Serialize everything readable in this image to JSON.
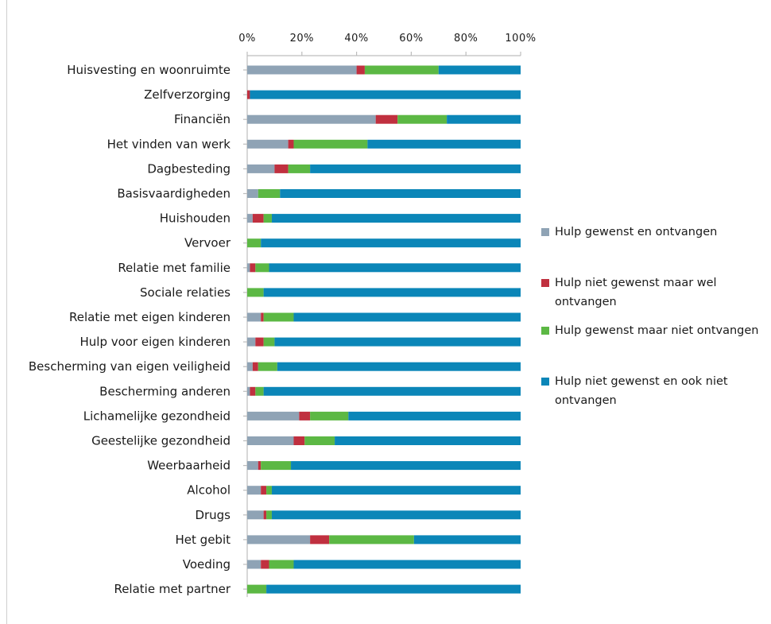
{
  "chart_data": {
    "type": "bar",
    "orientation": "horizontal",
    "stacked": true,
    "x_ticks": [
      "0%",
      "20%",
      "40%",
      "60%",
      "80%",
      "100%"
    ],
    "xlim": [
      0,
      100
    ],
    "axis_position": "top",
    "categories": [
      "Huisvesting en woonruimte",
      "Zelfverzorging",
      "Financiën",
      "Het vinden van werk",
      "Dagbesteding",
      "Basisvaardigheden",
      "Huishouden",
      "Vervoer",
      "Relatie met familie",
      "Sociale relaties",
      "Relatie met eigen kinderen",
      "Hulp voor eigen kinderen",
      "Bescherming van eigen veiligheid",
      "Bescherming anderen",
      "Lichamelijke gezondheid",
      "Geestelijke gezondheid",
      "Weerbaarheid",
      "Alcohol",
      "Drugs",
      "Het gebit",
      "Voeding",
      "Relatie met partner"
    ],
    "series": [
      {
        "name": "Hulp gewenst en ontvangen",
        "color": "#8fa3b5",
        "values": [
          40,
          0,
          47,
          15,
          10,
          4,
          2,
          0,
          1,
          0,
          5,
          3,
          2,
          1,
          19,
          17,
          4,
          5,
          6,
          23,
          5,
          0
        ]
      },
      {
        "name": "Hulp niet gewenst maar wel ontvangen",
        "color": "#c0303f",
        "values": [
          3,
          1,
          8,
          2,
          5,
          0,
          4,
          0,
          2,
          0,
          1,
          3,
          2,
          2,
          4,
          4,
          1,
          2,
          1,
          7,
          3,
          0
        ]
      },
      {
        "name": "Hulp gewenst maar niet ontvangen",
        "color": "#5cb844",
        "values": [
          27,
          0,
          18,
          27,
          8,
          8,
          3,
          5,
          5,
          6,
          11,
          4,
          7,
          3,
          14,
          11,
          11,
          2,
          2,
          31,
          9,
          7
        ]
      },
      {
        "name": "Hulp niet gewenst en ook niet ontvangen",
        "color": "#0b86b8",
        "values": [
          30,
          99,
          27,
          56,
          77,
          88,
          91,
          95,
          92,
          94,
          83,
          90,
          89,
          94,
          63,
          68,
          84,
          91,
          91,
          39,
          83,
          93
        ]
      }
    ],
    "legend": {
      "position": "right",
      "entries": [
        [
          "Hulp gewenst en ontvangen"
        ],
        [
          "Hulp niet gewenst maar wel",
          "ontvangen"
        ],
        [
          "Hulp gewenst maar niet ontvangen"
        ],
        [
          "Hulp niet gewenst en ook niet",
          "ontvangen"
        ]
      ]
    },
    "grid": false
  }
}
